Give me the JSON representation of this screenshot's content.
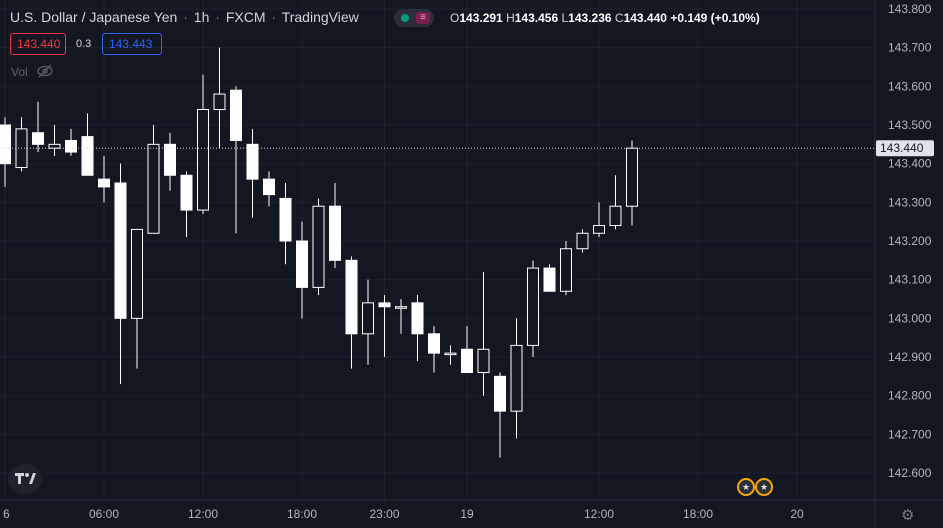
{
  "header": {
    "symbol": "U.S. Dollar / Japanese Yen",
    "interval": "1h",
    "exchange": "FXCM",
    "source": "TradingView",
    "market_status_icon": "market-open-dot-icon",
    "menu_icon": "hamburger-icon"
  },
  "ohlc": {
    "o_label": "O",
    "o": "143.291",
    "h_label": "H",
    "h": "143.456",
    "l_label": "L",
    "l": "143.236",
    "c_label": "C",
    "c": "143.440",
    "change": "+0.149 (+0.10%)"
  },
  "trade": {
    "sell": "143.440",
    "spread": "0.3",
    "buy": "143.443"
  },
  "volume": {
    "label": "Vol",
    "icon": "eye-hidden-icon"
  },
  "price_label": "143.440",
  "colors": {
    "up": "#ffffff",
    "down": "#ffffff",
    "sell": "#f23645",
    "buy": "#2962ff",
    "background": "#131722"
  },
  "chart_data": {
    "type": "candlestick",
    "title": "",
    "xlabel": "",
    "ylabel": "",
    "ylim": [
      142.55,
      143.83
    ],
    "y_ticks": [
      "143.800",
      "143.700",
      "143.600",
      "143.500",
      "143.400",
      "143.300",
      "143.200",
      "143.100",
      "143.000",
      "142.900",
      "142.800",
      "142.700",
      "142.600"
    ],
    "x_ticks": [
      {
        "label": "6",
        "index": 0
      },
      {
        "label": "06:00",
        "index": 6
      },
      {
        "label": "12:00",
        "index": 12
      },
      {
        "label": "18:00",
        "index": 18
      },
      {
        "label": "23:00",
        "index": 23
      },
      {
        "label": "19",
        "index": 28
      },
      {
        "label": "12:00",
        "index": 36
      },
      {
        "label": "18:00",
        "index": 42
      },
      {
        "label": "20",
        "index": 48
      }
    ],
    "last_price": 143.44,
    "grid": true,
    "candles": [
      {
        "o": 143.5,
        "h": 143.52,
        "l": 143.34,
        "c": 143.4
      },
      {
        "o": 143.39,
        "h": 143.52,
        "l": 143.38,
        "c": 143.49
      },
      {
        "o": 143.48,
        "h": 143.56,
        "l": 143.43,
        "c": 143.45
      },
      {
        "o": 143.44,
        "h": 143.5,
        "l": 143.42,
        "c": 143.45
      },
      {
        "o": 143.46,
        "h": 143.49,
        "l": 143.42,
        "c": 143.43
      },
      {
        "o": 143.47,
        "h": 143.53,
        "l": 143.37,
        "c": 143.37
      },
      {
        "o": 143.36,
        "h": 143.42,
        "l": 143.3,
        "c": 143.34
      },
      {
        "o": 143.35,
        "h": 143.4,
        "l": 142.83,
        "c": 143.0
      },
      {
        "o": 143.0,
        "h": 143.23,
        "l": 142.87,
        "c": 143.23
      },
      {
        "o": 143.22,
        "h": 143.5,
        "l": 143.22,
        "c": 143.45
      },
      {
        "o": 143.45,
        "h": 143.48,
        "l": 143.33,
        "c": 143.37
      },
      {
        "o": 143.37,
        "h": 143.38,
        "l": 143.21,
        "c": 143.28
      },
      {
        "o": 143.28,
        "h": 143.63,
        "l": 143.27,
        "c": 143.54
      },
      {
        "o": 143.54,
        "h": 143.7,
        "l": 143.44,
        "c": 143.58
      },
      {
        "o": 143.59,
        "h": 143.6,
        "l": 143.22,
        "c": 143.46
      },
      {
        "o": 143.45,
        "h": 143.49,
        "l": 143.26,
        "c": 143.36
      },
      {
        "o": 143.36,
        "h": 143.38,
        "l": 143.29,
        "c": 143.32
      },
      {
        "o": 143.31,
        "h": 143.35,
        "l": 143.14,
        "c": 143.2
      },
      {
        "o": 143.2,
        "h": 143.25,
        "l": 143.0,
        "c": 143.08
      },
      {
        "o": 143.08,
        "h": 143.31,
        "l": 143.06,
        "c": 143.29
      },
      {
        "o": 143.29,
        "h": 143.35,
        "l": 143.13,
        "c": 143.15
      },
      {
        "o": 143.15,
        "h": 143.16,
        "l": 142.87,
        "c": 142.96
      },
      {
        "o": 142.96,
        "h": 143.1,
        "l": 142.88,
        "c": 143.04
      },
      {
        "o": 143.04,
        "h": 143.06,
        "l": 142.9,
        "c": 143.03
      },
      {
        "o": 143.03,
        "h": 143.05,
        "l": 142.96,
        "c": 143.03
      },
      {
        "o": 143.04,
        "h": 143.06,
        "l": 142.89,
        "c": 142.96
      },
      {
        "o": 142.96,
        "h": 142.98,
        "l": 142.86,
        "c": 142.91
      },
      {
        "o": 142.91,
        "h": 142.93,
        "l": 142.88,
        "c": 142.91
      },
      {
        "o": 142.92,
        "h": 142.98,
        "l": 142.86,
        "c": 142.86
      },
      {
        "o": 142.86,
        "h": 143.12,
        "l": 142.8,
        "c": 142.92
      },
      {
        "o": 142.85,
        "h": 142.86,
        "l": 142.64,
        "c": 142.76
      },
      {
        "o": 142.76,
        "h": 143.0,
        "l": 142.69,
        "c": 142.93
      },
      {
        "o": 142.93,
        "h": 143.15,
        "l": 142.9,
        "c": 143.13
      },
      {
        "o": 143.13,
        "h": 143.14,
        "l": 143.07,
        "c": 143.07
      },
      {
        "o": 143.07,
        "h": 143.2,
        "l": 143.06,
        "c": 143.18
      },
      {
        "o": 143.18,
        "h": 143.23,
        "l": 143.17,
        "c": 143.22
      },
      {
        "o": 143.22,
        "h": 143.3,
        "l": 143.21,
        "c": 143.24
      },
      {
        "o": 143.24,
        "h": 143.37,
        "l": 143.23,
        "c": 143.29
      },
      {
        "o": 143.29,
        "h": 143.46,
        "l": 143.24,
        "c": 143.44
      }
    ]
  }
}
